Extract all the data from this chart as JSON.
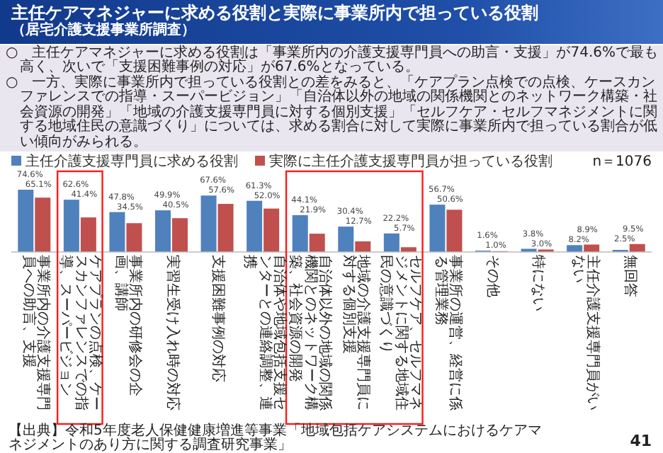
{
  "chart_data": {
    "type": "bar",
    "title": "主任ケアマネジャーに求める役割と実際に事業所内で担っている役割",
    "subtitle": "（居宅介護支援事業所調査）",
    "categories": [
      "事業所内の介護支援専門員への助言、支援",
      "ケアプランの点検、ケースカンファレンスでの指導、スーパービジョン",
      "事業所内の研修会の企画、講師",
      "実習生受け入れ時の対応",
      "支援困難事例の対応",
      "自治体や地域包括支援センターとの連絡調整、連携",
      "自治体以外の地域の関係機関とのネットワーク構築、社会資源の開発",
      "地域の介護支援専門員に対する個別支援",
      "セルフケア、セルフマネジメントに関する地域住民の意識づくり",
      "事業所の運営、経営に係る管理業務",
      "その他",
      "特にない",
      "主任介護支援専門員がいない",
      "無回答"
    ],
    "series": [
      {
        "name": "主任介護支援専門員に求める役割",
        "color": "#4f81bd",
        "values": [
          74.6,
          62.6,
          47.8,
          49.9,
          67.6,
          61.3,
          44.1,
          30.4,
          22.2,
          56.7,
          1.6,
          3.8,
          8.2,
          2.5
        ],
        "value_labels": [
          "74.6%",
          "62.6%",
          "47.8%",
          "49.9%",
          "67.6%",
          "61.3%",
          "44.1%",
          "30.4%",
          "22.2%",
          "56.7%",
          "1.6%",
          "3.8%",
          "8.2%",
          "2.5%"
        ]
      },
      {
        "name": "実際に主任介護支援専門員が担っている役割",
        "color": "#c0504d",
        "values": [
          65.1,
          41.4,
          34.5,
          40.5,
          57.6,
          52.0,
          21.9,
          12.7,
          5.7,
          50.6,
          1.0,
          3.0,
          8.9,
          9.5
        ],
        "value_labels": [
          "65.1%",
          "41.4%",
          "34.5%",
          "40.5%",
          "57.6%",
          "52.0%",
          "21.9%",
          "12.7%",
          "5.7%",
          "50.6%",
          "1.0%",
          "3.0%",
          "8.9%",
          "9.5%"
        ]
      }
    ],
    "legend": "top",
    "annotations": [
      "○　主任ケアマネジャーに求める役割は「事業所内の介護支援専門員への助言・支援」が74.6%で最も高く、次いで「支援困難事例の対応」が67.6%となっている。",
      "○　一方、実際に事業所内で担っている役割との差をみると、「ケアプラン点検での点検、ケースカンファレンスでの指導・スーパービジョン」「自治体以外の地域の関係機関とのネットワーク構築・社会資源の開発」「地域の介護支援専門員に対する個別支援」「セルフケア・セルフマネジメントに関する地域住民の意識づくり」については、求める割合に対して実際に事業所内で担っている割合が低い傾向がみられる。",
      "n＝1076",
      "【出典】令和5年度老人保健健康増進等事業「地域包括ケアシステムにおけるケアマネジメントのあり方に関する調査研究事業」",
      "41"
    ]
  }
}
